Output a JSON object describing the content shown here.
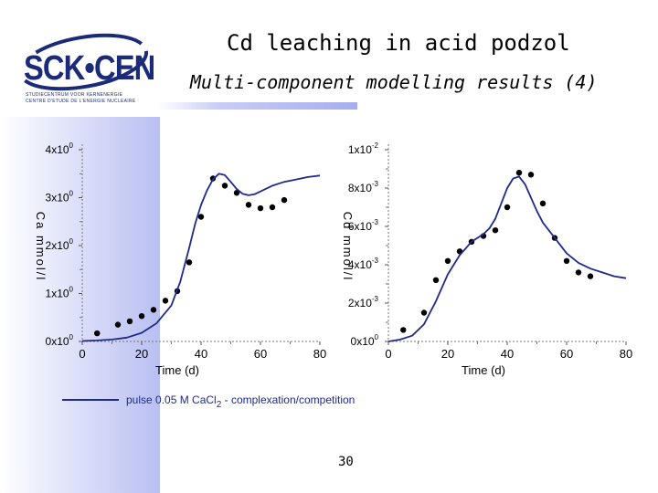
{
  "header": {
    "title": "Cd leaching in acid podzol",
    "subtitle": "Multi-component modelling results (4)"
  },
  "logo": {
    "text": "SCK•CEN",
    "sub_line_1": "STUDIECENTRUM VOOR KERNENERGIE",
    "sub_line_2": "CENTRE D'ETUDE DE L'ENERGIE NUCLEAIRE"
  },
  "colors": {
    "model_line": "#1f2a8c",
    "points": "#000000"
  },
  "chart_data": [
    {
      "type": "scatter",
      "xlabel": "Time (d)",
      "ylabel": "Ca mmol/l",
      "xlim": [
        0,
        80
      ],
      "ylim": [
        0,
        4
      ],
      "x_ticks": [
        "0",
        "20",
        "40",
        "60",
        "80"
      ],
      "y_ticks": [
        {
          "mantissa": "0x10",
          "exp": "0"
        },
        {
          "mantissa": "1x10",
          "exp": "0"
        },
        {
          "mantissa": "2x10",
          "exp": "0"
        },
        {
          "mantissa": "3x10",
          "exp": "0"
        },
        {
          "mantissa": "4x10",
          "exp": "0"
        }
      ],
      "series": [
        {
          "kind": "points",
          "x": [
            5,
            12,
            16,
            20,
            24,
            28,
            32,
            36,
            40,
            44,
            48,
            52,
            56,
            60,
            64,
            68
          ],
          "y": [
            0.17,
            0.35,
            0.42,
            0.53,
            0.66,
            0.85,
            1.05,
            1.65,
            2.6,
            3.4,
            3.25,
            3.1,
            2.85,
            2.78,
            2.8,
            2.95
          ]
        },
        {
          "kind": "line",
          "name": "pulse 0.05 M CaCl2 - complexation/competition",
          "x": [
            0,
            5,
            10,
            15,
            20,
            25,
            30,
            33,
            36,
            38,
            40,
            42,
            44,
            46,
            48,
            50,
            52,
            54,
            56,
            58,
            60,
            64,
            68,
            72,
            76,
            80
          ],
          "y": [
            0.01,
            0.02,
            0.04,
            0.08,
            0.18,
            0.38,
            0.75,
            1.25,
            1.95,
            2.45,
            2.85,
            3.15,
            3.38,
            3.5,
            3.47,
            3.33,
            3.18,
            3.08,
            3.05,
            3.07,
            3.13,
            3.25,
            3.33,
            3.38,
            3.43,
            3.46
          ]
        }
      ]
    },
    {
      "type": "scatter",
      "xlabel": "Time (d)",
      "ylabel": "Cd mmol/l",
      "xlim": [
        0,
        80
      ],
      "ylim": [
        0,
        0.01
      ],
      "x_ticks": [
        "0",
        "20",
        "40",
        "60",
        "80"
      ],
      "y_ticks": [
        {
          "mantissa": "0x10",
          "exp": "0"
        },
        {
          "mantissa": "2x10",
          "exp": "-3"
        },
        {
          "mantissa": "4x10",
          "exp": "-3"
        },
        {
          "mantissa": "6x10",
          "exp": "-3"
        },
        {
          "mantissa": "8x10",
          "exp": "-3"
        },
        {
          "mantissa": "1x10",
          "exp": "-2"
        }
      ],
      "series": [
        {
          "kind": "points",
          "x": [
            5,
            12,
            16,
            20,
            24,
            28,
            32,
            36,
            40,
            44,
            48,
            52,
            56,
            60,
            64,
            68
          ],
          "y": [
            0.0006,
            0.0015,
            0.0032,
            0.0042,
            0.0047,
            0.0052,
            0.0055,
            0.0058,
            0.007,
            0.0088,
            0.0087,
            0.0072,
            0.0054,
            0.0042,
            0.0036,
            0.0034
          ]
        },
        {
          "kind": "line",
          "name": "pulse 0.05 M CaCl2 - complexation/competition",
          "x": [
            0,
            4,
            8,
            12,
            16,
            20,
            24,
            28,
            32,
            34,
            36,
            38,
            40,
            42,
            44,
            46,
            48,
            50,
            52,
            56,
            60,
            64,
            68,
            72,
            76,
            80
          ],
          "y": [
            0,
            0.0001,
            0.0003,
            0.0009,
            0.0021,
            0.0035,
            0.0045,
            0.0052,
            0.0056,
            0.0059,
            0.0064,
            0.0072,
            0.008,
            0.0085,
            0.0086,
            0.0082,
            0.0075,
            0.0068,
            0.0062,
            0.0054,
            0.0046,
            0.0041,
            0.0038,
            0.0036,
            0.0034,
            0.0033
          ]
        }
      ]
    }
  ],
  "legend": {
    "label_main": "pulse 0.05 M CaCl",
    "label_sub": "2",
    "label_rest": " - complexation/competition"
  },
  "footer": {
    "page_number": "30"
  }
}
